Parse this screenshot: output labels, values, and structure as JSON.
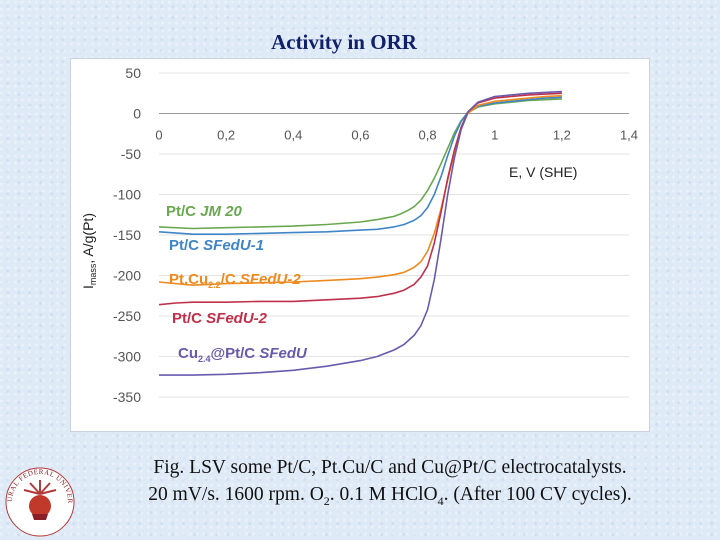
{
  "slide": {
    "title": "Activity in ORR"
  },
  "caption": {
    "line1": "Fig. LSV some Pt/C, Pt.Cu/C and Cu@Pt/C electrocatalysts.",
    "line2_a": "20 mV/s. 1600 rpm. O",
    "line2_sub1": "2",
    "line2_b": ". 0.1 M HClO",
    "line2_sub2": "4",
    "line2_c": ". (After 100 CV cycles)."
  },
  "logo": {
    "text": "URAL FEDERAL UNIVERSITY"
  },
  "chart_data": {
    "type": "line",
    "title": "",
    "xlabel": "E, V (SHE)",
    "ylabel_main": "I",
    "ylabel_sub": "mass",
    "ylabel_rest": ", A/g(Pt)",
    "xlim": [
      0,
      1.4
    ],
    "ylim": [
      -350,
      50
    ],
    "xticks": [
      "0",
      "0,2",
      "0,4",
      "0,6",
      "0,8",
      "1",
      "1,2",
      "1,4"
    ],
    "yticks": [
      "50",
      "0",
      "-50",
      "-100",
      "-150",
      "-200",
      "-250",
      "-300",
      "-350"
    ],
    "series": [
      {
        "name_plain": "Pt/C ",
        "name_ital": "JM 20",
        "name_sub": "",
        "name_after": "",
        "color": "#6aa84f",
        "x": [
          0.0,
          0.1,
          0.2,
          0.3,
          0.4,
          0.5,
          0.6,
          0.65,
          0.7,
          0.72,
          0.74,
          0.76,
          0.78,
          0.8,
          0.82,
          0.84,
          0.86,
          0.88,
          0.9,
          0.92,
          0.95,
          1.0,
          1.05,
          1.1,
          1.15,
          1.2
        ],
        "y": [
          -140,
          -142,
          -141,
          -140,
          -139,
          -137,
          -134,
          -131,
          -127,
          -124,
          -120,
          -115,
          -107,
          -95,
          -80,
          -62,
          -43,
          -24,
          -9,
          1,
          8,
          12,
          14,
          16,
          17,
          18
        ]
      },
      {
        "name_plain": "Pt/C  ",
        "name_ital": "SFedU-1",
        "name_sub": "",
        "name_after": "",
        "color": "#3f86c6",
        "x": [
          0.0,
          0.1,
          0.2,
          0.3,
          0.4,
          0.5,
          0.6,
          0.65,
          0.7,
          0.73,
          0.76,
          0.78,
          0.8,
          0.82,
          0.84,
          0.86,
          0.88,
          0.9,
          0.92,
          0.95,
          1.0,
          1.05,
          1.1,
          1.15,
          1.2
        ],
        "y": [
          -146,
          -149,
          -149,
          -148,
          -147,
          -146,
          -144,
          -143,
          -140,
          -137,
          -132,
          -126,
          -116,
          -100,
          -78,
          -52,
          -28,
          -10,
          2,
          9,
          13,
          15,
          17,
          19,
          20
        ]
      },
      {
        "name_plain": "Pt.Cu",
        "name_ital": "SFedU-2",
        "name_sub": "2.2",
        "name_after": "/C  ",
        "color": "#ee8a1e",
        "x": [
          0.0,
          0.1,
          0.2,
          0.3,
          0.4,
          0.5,
          0.6,
          0.65,
          0.7,
          0.73,
          0.76,
          0.78,
          0.8,
          0.82,
          0.84,
          0.86,
          0.88,
          0.9,
          0.92,
          0.95,
          1.0,
          1.05,
          1.1,
          1.15,
          1.2
        ],
        "y": [
          -208,
          -212,
          -210,
          -209,
          -208,
          -206,
          -204,
          -202,
          -199,
          -196,
          -190,
          -183,
          -170,
          -148,
          -118,
          -82,
          -48,
          -19,
          0,
          10,
          15,
          17,
          19,
          21,
          22
        ]
      },
      {
        "name_plain": "Pt/C  ",
        "name_ital": "SFedU-2",
        "name_sub": "",
        "name_after": "",
        "color": "#c0304a",
        "x": [
          0.0,
          0.05,
          0.1,
          0.2,
          0.3,
          0.4,
          0.5,
          0.6,
          0.65,
          0.7,
          0.73,
          0.76,
          0.78,
          0.8,
          0.82,
          0.84,
          0.86,
          0.88,
          0.9,
          0.92,
          0.95,
          1.0,
          1.05,
          1.1,
          1.15,
          1.2
        ],
        "y": [
          -236,
          -234,
          -233,
          -233,
          -232,
          -232,
          -230,
          -228,
          -226,
          -222,
          -218,
          -211,
          -202,
          -188,
          -160,
          -122,
          -80,
          -45,
          -17,
          2,
          13,
          19,
          21,
          23,
          24,
          25
        ]
      },
      {
        "name_plain": "Cu",
        "name_ital": "SFedU",
        "name_sub": "2.4",
        "name_after": "@Pt/C  ",
        "color": "#6a5aad",
        "x": [
          0.0,
          0.1,
          0.2,
          0.3,
          0.4,
          0.5,
          0.6,
          0.65,
          0.7,
          0.73,
          0.76,
          0.78,
          0.8,
          0.82,
          0.84,
          0.86,
          0.88,
          0.9,
          0.92,
          0.95,
          1.0,
          1.05,
          1.1,
          1.15,
          1.2
        ],
        "y": [
          -323,
          -323,
          -322,
          -320,
          -317,
          -312,
          -305,
          -300,
          -292,
          -285,
          -274,
          -262,
          -242,
          -205,
          -155,
          -100,
          -55,
          -20,
          2,
          14,
          21,
          23,
          25,
          26,
          27
        ]
      }
    ]
  }
}
